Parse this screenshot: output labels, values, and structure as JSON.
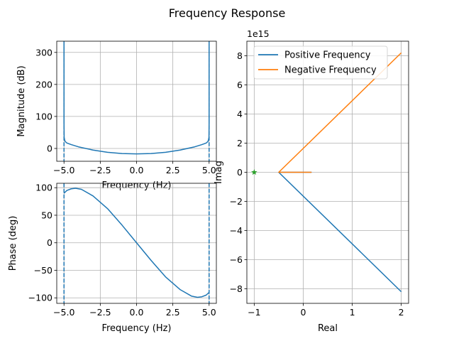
{
  "figure": {
    "title": "Frequency Response"
  },
  "colors": {
    "blue": "#1f77b4",
    "orange": "#ff7f0e",
    "green": "#2ca02c",
    "grid": "#b0b0b0"
  },
  "chart_data": [
    {
      "id": "magnitude",
      "type": "line",
      "xlabel": "Frequency (Hz)",
      "ylabel": "Magnitude (dB)",
      "xlim": [
        -5.5,
        5.5
      ],
      "ylim": [
        -40,
        335
      ],
      "xticks": [
        -5.0,
        -2.5,
        0.0,
        2.5,
        5.0
      ],
      "xtick_labels": [
        "−5.0",
        "−2.5",
        "0.0",
        "2.5",
        "5.0"
      ],
      "yticks": [
        0,
        100,
        200,
        300
      ],
      "ytick_labels": [
        "0",
        "100",
        "200",
        "300"
      ],
      "grid": true,
      "series": [
        {
          "color": "#1f77b4",
          "x": [
            -5.0,
            -5.0,
            -4.99,
            -4.95,
            -4.9,
            -4.8,
            -4.5,
            -4.0,
            -3.0,
            -2.0,
            -1.0,
            0.0,
            1.0,
            2.0,
            3.0,
            4.0,
            4.5,
            4.8,
            4.9,
            4.95,
            4.99,
            5.0,
            5.0
          ],
          "y": [
            325,
            80,
            35,
            25,
            21,
            17,
            12,
            5,
            -5,
            -12,
            -16,
            -17,
            -16,
            -12,
            -5,
            5,
            12,
            17,
            21,
            25,
            35,
            80,
            325
          ]
        }
      ],
      "vlines": [
        -5.0,
        5.0
      ]
    },
    {
      "id": "phase",
      "type": "line",
      "xlabel": "Frequency (Hz)",
      "ylabel": "Phase (deg)",
      "xlim": [
        -5.5,
        5.5
      ],
      "ylim": [
        -110,
        108
      ],
      "xticks": [
        -5.0,
        -2.5,
        0.0,
        2.5,
        5.0
      ],
      "xtick_labels": [
        "−5.0",
        "−2.5",
        "0.0",
        "2.5",
        "5.0"
      ],
      "yticks": [
        -100,
        -50,
        0,
        50,
        100
      ],
      "ytick_labels": [
        "−100",
        "−50",
        "0",
        "50",
        "100"
      ],
      "grid": true,
      "series": [
        {
          "color": "#1f77b4",
          "x": [
            -5.0,
            -4.8,
            -4.5,
            -4.2,
            -3.8,
            -3.0,
            -2.0,
            -1.0,
            0.0,
            1.0,
            2.0,
            3.0,
            3.8,
            4.2,
            4.5,
            4.8,
            5.0
          ],
          "y": [
            90,
            95,
            98,
            99,
            97,
            85,
            62,
            32,
            0,
            -32,
            -62,
            -85,
            -97,
            -99,
            -98,
            -95,
            -90
          ]
        }
      ],
      "vlines": [
        -5.0,
        5.0
      ]
    },
    {
      "id": "nyquist",
      "type": "line",
      "xlabel": "Real",
      "ylabel": "Imag",
      "offset_text": "1e15",
      "xlim": [
        -1.15,
        2.15
      ],
      "ylim": [
        -9.0,
        9.0
      ],
      "xticks": [
        -1,
        0,
        1,
        2
      ],
      "xtick_labels": [
        "−1",
        "0",
        "1",
        "2"
      ],
      "yticks": [
        -8,
        -6,
        -4,
        -2,
        0,
        2,
        4,
        6,
        8
      ],
      "ytick_labels": [
        "−8",
        "−6",
        "−4",
        "−2",
        "0",
        "2",
        "4",
        "6",
        "8"
      ],
      "grid": true,
      "legend": "upper-left",
      "series": [
        {
          "name": "Positive Frequency",
          "color": "#1f77b4",
          "x": [
            2.0,
            -0.5,
            0.17
          ],
          "y": [
            -8.2,
            0,
            0
          ]
        },
        {
          "name": "Negative Frequency",
          "color": "#ff7f0e",
          "x": [
            2.0,
            -0.5,
            0.17
          ],
          "y": [
            8.2,
            0,
            0
          ]
        }
      ],
      "marker": {
        "x": -1,
        "y": 0,
        "color": "#2ca02c",
        "shape": "star"
      }
    }
  ]
}
